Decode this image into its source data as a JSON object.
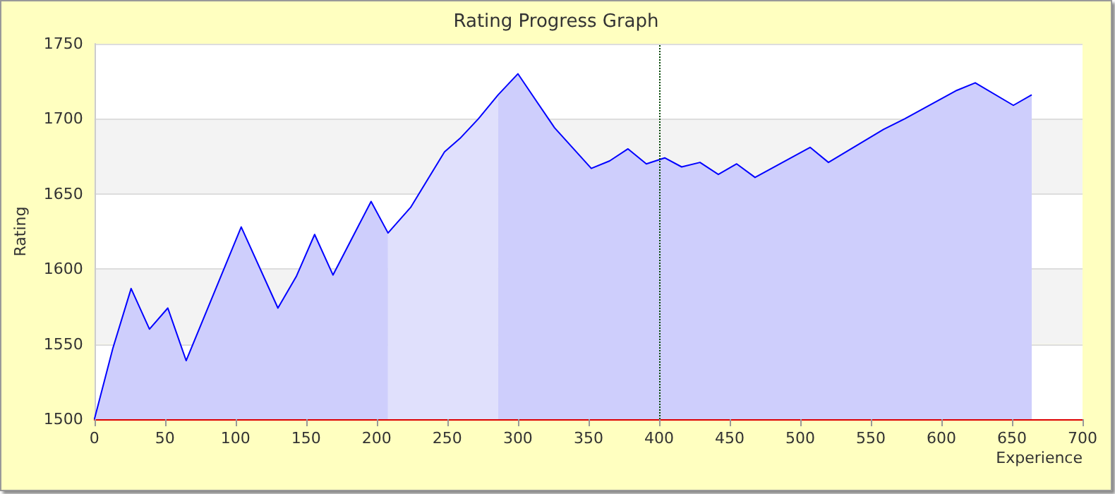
{
  "chart_data": {
    "type": "area",
    "title": "Rating Progress Graph",
    "xlabel": "Experience",
    "ylabel": "Rating",
    "xlim": [
      0,
      700
    ],
    "xticks": [
      0,
      50,
      100,
      150,
      200,
      250,
      300,
      350,
      400,
      450,
      500,
      550,
      600,
      650,
      700
    ],
    "ylim": [
      1500,
      1750
    ],
    "yticks": [
      1500,
      1550,
      1600,
      1650,
      1700,
      1750
    ],
    "grid": "y",
    "marker": "none",
    "series": [
      {
        "color": "#cecefc",
        "x": [
          0,
          13,
          26,
          39,
          52,
          65,
          104,
          130,
          143,
          156,
          169,
          196,
          208
        ],
        "values": [
          1500,
          1547,
          1587,
          1560,
          1574,
          1539,
          1628,
          1574,
          1595,
          1623,
          1596,
          1645,
          1624
        ]
      },
      {
        "color": "#e0e0fc",
        "x": [
          208,
          224,
          248,
          259,
          272,
          286
        ],
        "values": [
          1624,
          1641,
          1678,
          1687,
          1700,
          1716
        ]
      },
      {
        "color": "#cecefc",
        "x": [
          286,
          300,
          326,
          352,
          365,
          378,
          391,
          404,
          416,
          429,
          442,
          455,
          468,
          507,
          520,
          559,
          574,
          611,
          624,
          651,
          664
        ],
        "values": [
          1716,
          1730,
          1694,
          1667,
          1672,
          1680,
          1670,
          1674,
          1668,
          1671,
          1663,
          1670,
          1661,
          1681,
          1671,
          1693,
          1700,
          1719,
          1724,
          1709,
          1716
        ]
      },
      {
        "type": "line",
        "color": "#0000ff",
        "x": [
          0,
          13,
          26,
          39,
          52,
          65,
          104,
          130,
          143,
          156,
          169,
          196,
          208,
          224,
          248,
          259,
          272,
          286,
          300,
          326,
          352,
          365,
          378,
          391,
          404,
          416,
          429,
          442,
          455,
          468,
          507,
          520,
          559,
          574,
          611,
          624,
          651,
          664
        ],
        "values": [
          1500,
          1547,
          1587,
          1560,
          1574,
          1539,
          1628,
          1574,
          1595,
          1623,
          1596,
          1645,
          1624,
          1641,
          1678,
          1687,
          1700,
          1716,
          1730,
          1694,
          1667,
          1672,
          1680,
          1670,
          1674,
          1668,
          1671,
          1663,
          1670,
          1661,
          1681,
          1671,
          1693,
          1700,
          1719,
          1724,
          1709,
          1716
        ]
      }
    ],
    "ref_lines": [
      {
        "axis": "x",
        "value": 400,
        "color": "#004400",
        "line_style": "dotted"
      }
    ]
  }
}
